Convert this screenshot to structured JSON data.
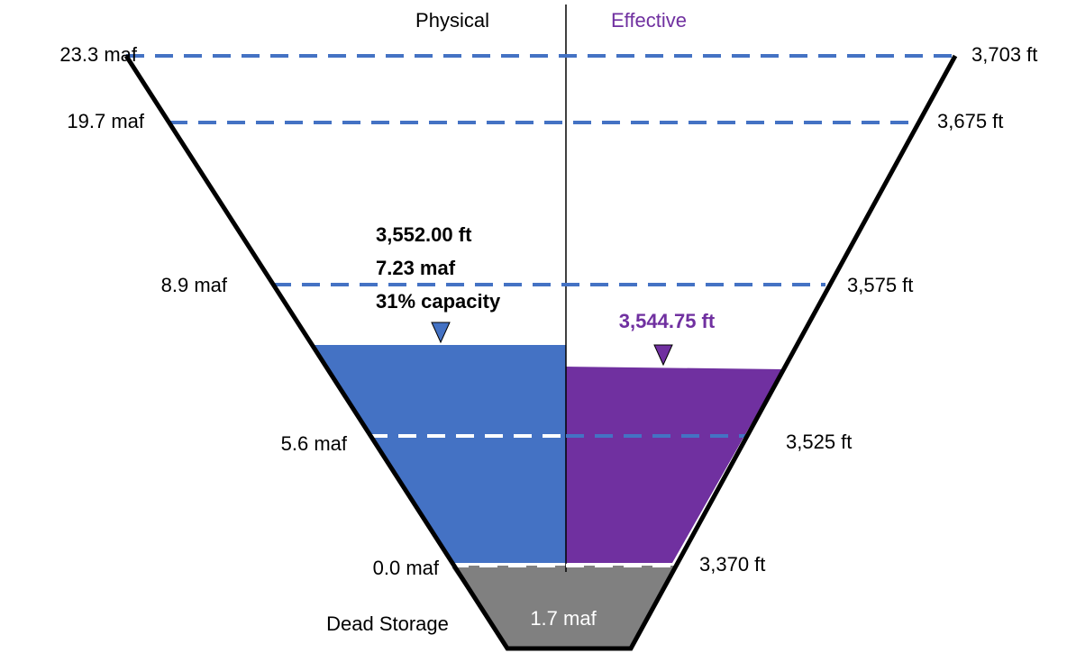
{
  "header": {
    "left": "Physical",
    "right": "Effective"
  },
  "levels": [
    {
      "storage": "23.3 maf",
      "elevation": "3,703 ft"
    },
    {
      "storage": "19.7 maf",
      "elevation": "3,675 ft"
    },
    {
      "storage": "8.9 maf",
      "elevation": "3,575 ft"
    },
    {
      "storage": "5.6 maf",
      "elevation": "3,525 ft"
    },
    {
      "storage": "0.0 maf",
      "elevation": "3,370 ft"
    }
  ],
  "physical": {
    "elevation": "3,552.00 ft",
    "storage": "7.23 maf",
    "capacity": "31% capacity"
  },
  "effective": {
    "elevation": "3,544.75 ft"
  },
  "dead_storage": {
    "label": "Dead Storage",
    "storage": "1.7 maf"
  }
}
